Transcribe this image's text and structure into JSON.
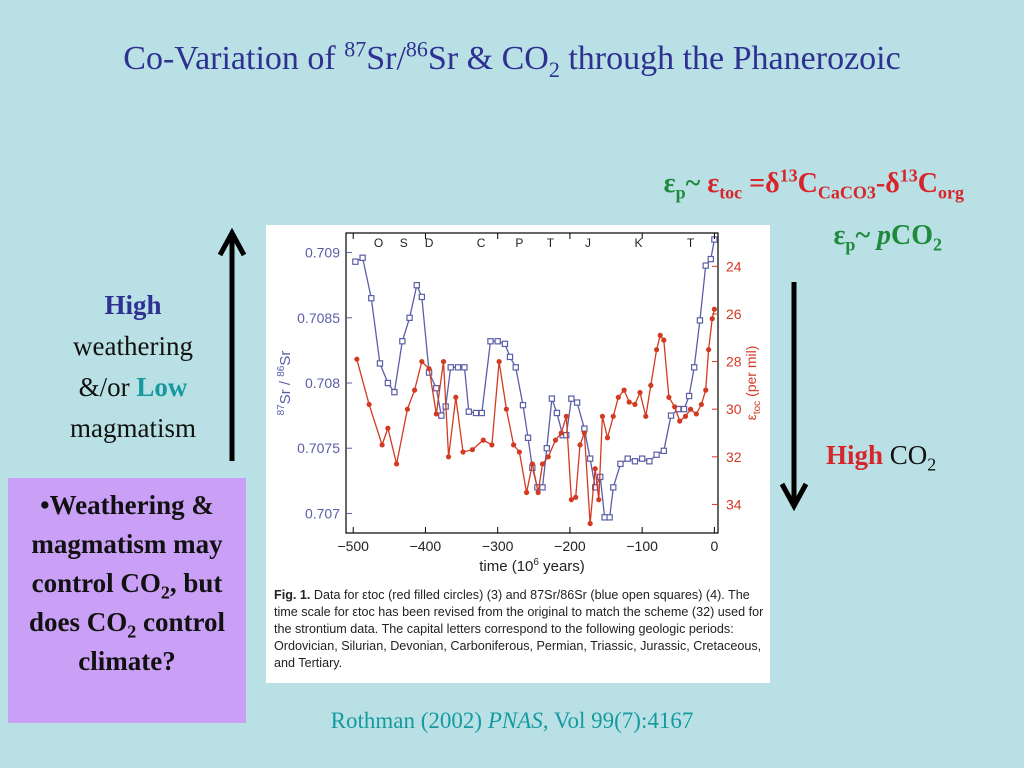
{
  "slide": {
    "title_parts": [
      "Co-Variation of ",
      "87",
      "Sr/",
      "86",
      "Sr & CO",
      "2",
      " through the Phanerozoic"
    ],
    "eq1_parts": [
      "ε",
      "p",
      "~ ",
      "ε",
      "toc",
      " =δ",
      "13",
      "C",
      "CaCO3",
      "-δ",
      "13",
      "C",
      "org"
    ],
    "eq2_parts": [
      "ε",
      "p",
      "~ ",
      "p",
      "CO",
      "2"
    ],
    "left_text": {
      "high": "High",
      "weathering": "weathering",
      "andor": "&/or ",
      "low": "Low",
      "magmatism": "magmatism"
    },
    "high_co2": {
      "high": "High",
      "co": " CO",
      "sub": "2"
    },
    "question_parts": [
      "•Weathering & magmatism may control CO",
      "2",
      ", but does CO",
      "2",
      " control climate?"
    ],
    "citation": {
      "authors": "Rothman (2002) ",
      "journal": "PNAS",
      "rest": ", Vol 99(7):4167"
    }
  },
  "colors": {
    "background": "#b9e0e4",
    "title": "#2e3191",
    "green": "#1f8a3c",
    "red": "#d7262b",
    "teal": "#169a9f",
    "question_box": "#c9a0f6",
    "sr_series": "#5b5ea6",
    "toc_series": "#d23a22"
  },
  "caption": {
    "fig_label": "Fig. 1.",
    "text": "Data for εtoc (red filled circles) (3) and 87Sr/86Sr (blue open squares) (4). The time scale for εtoc has been revised from the original to match the scheme (32) used for the strontium data. The capital letters correspond to the following geologic periods: Ordovician, Silurian, Devonian, Carboniferous, Permian, Triassic, Jurassic, Cretaceous, and Tertiary."
  },
  "chart_data": {
    "type": "line",
    "xlabel": "time (10^6 years)",
    "xlim": [
      -510,
      5
    ],
    "x_ticks": [
      -500,
      -400,
      -300,
      -200,
      -100,
      0
    ],
    "y_left_label": "87Sr / 86Sr",
    "y_left_lim": [
      0.70685,
      0.70915
    ],
    "y_left_ticks": [
      0.707,
      0.7075,
      0.708,
      0.7085,
      0.709
    ],
    "y_right_label": "εtoc (per mil)",
    "y_right_lim": [
      35.2,
      22.6
    ],
    "y_right_ticks": [
      24,
      26,
      28,
      30,
      32,
      34
    ],
    "periods": [
      {
        "label": "O",
        "x": -465
      },
      {
        "label": "S",
        "x": -430
      },
      {
        "label": "D",
        "x": -395
      },
      {
        "label": "C",
        "x": -323
      },
      {
        "label": "P",
        "x": -270
      },
      {
        "label": "T",
        "x": -227
      },
      {
        "label": "J",
        "x": -175
      },
      {
        "label": "K",
        "x": -105
      },
      {
        "label": "T",
        "x": -33
      }
    ],
    "series": [
      {
        "name": "87Sr/86Sr",
        "axis": "left",
        "marker": "open-square",
        "points": [
          [
            -497,
            0.70893
          ],
          [
            -487,
            0.70896
          ],
          [
            -475,
            0.70865
          ],
          [
            -463,
            0.70815
          ],
          [
            -452,
            0.708
          ],
          [
            -443,
            0.70793
          ],
          [
            -432,
            0.70832
          ],
          [
            -422,
            0.7085
          ],
          [
            -412,
            0.70875
          ],
          [
            -405,
            0.70866
          ],
          [
            -395,
            0.70808
          ],
          [
            -385,
            0.70796
          ],
          [
            -378,
            0.70775
          ],
          [
            -372,
            0.70782
          ],
          [
            -365,
            0.70812
          ],
          [
            -355,
            0.70812
          ],
          [
            -346,
            0.70812
          ],
          [
            -340,
            0.70778
          ],
          [
            -330,
            0.70777
          ],
          [
            -322,
            0.70777
          ],
          [
            -310,
            0.70832
          ],
          [
            -300,
            0.70832
          ],
          [
            -290,
            0.7083
          ],
          [
            -283,
            0.7082
          ],
          [
            -275,
            0.70812
          ],
          [
            -265,
            0.70783
          ],
          [
            -258,
            0.70758
          ],
          [
            -252,
            0.70735
          ],
          [
            -245,
            0.7072
          ],
          [
            -238,
            0.7072
          ],
          [
            -232,
            0.7075
          ],
          [
            -225,
            0.70788
          ],
          [
            -218,
            0.70777
          ],
          [
            -210,
            0.7076
          ],
          [
            -205,
            0.7076
          ],
          [
            -198,
            0.70788
          ],
          [
            -190,
            0.70785
          ],
          [
            -180,
            0.70765
          ],
          [
            -172,
            0.70742
          ],
          [
            -165,
            0.7072
          ],
          [
            -158,
            0.70728
          ],
          [
            -152,
            0.70697
          ],
          [
            -145,
            0.70697
          ],
          [
            -140,
            0.7072
          ],
          [
            -130,
            0.70738
          ],
          [
            -120,
            0.70742
          ],
          [
            -110,
            0.7074
          ],
          [
            -100,
            0.70742
          ],
          [
            -90,
            0.7074
          ],
          [
            -80,
            0.70745
          ],
          [
            -70,
            0.70748
          ],
          [
            -60,
            0.70775
          ],
          [
            -50,
            0.7078
          ],
          [
            -42,
            0.7078
          ],
          [
            -35,
            0.7079
          ],
          [
            -28,
            0.70812
          ],
          [
            -20,
            0.70848
          ],
          [
            -12,
            0.7089
          ],
          [
            -5,
            0.70895
          ],
          [
            0,
            0.7091
          ]
        ]
      },
      {
        "name": "εtoc",
        "axis": "right",
        "marker": "filled-circle",
        "points": [
          [
            -495,
            27.9
          ],
          [
            -478,
            29.8
          ],
          [
            -460,
            31.5
          ],
          [
            -452,
            30.8
          ],
          [
            -440,
            32.3
          ],
          [
            -425,
            30.0
          ],
          [
            -415,
            29.2
          ],
          [
            -405,
            28.0
          ],
          [
            -395,
            28.3
          ],
          [
            -385,
            30.2
          ],
          [
            -375,
            28.0
          ],
          [
            -368,
            32.0
          ],
          [
            -358,
            29.5
          ],
          [
            -348,
            31.8
          ],
          [
            -335,
            31.7
          ],
          [
            -320,
            31.3
          ],
          [
            -308,
            31.5
          ],
          [
            -298,
            28.0
          ],
          [
            -288,
            30.0
          ],
          [
            -278,
            31.5
          ],
          [
            -270,
            31.8
          ],
          [
            -260,
            33.5
          ],
          [
            -252,
            32.3
          ],
          [
            -244,
            33.5
          ],
          [
            -238,
            32.3
          ],
          [
            -230,
            32.0
          ],
          [
            -220,
            31.3
          ],
          [
            -212,
            31.0
          ],
          [
            -205,
            30.3
          ],
          [
            -198,
            33.8
          ],
          [
            -192,
            33.7
          ],
          [
            -186,
            31.5
          ],
          [
            -180,
            31.0
          ],
          [
            -172,
            34.8
          ],
          [
            -165,
            32.5
          ],
          [
            -160,
            33.8
          ],
          [
            -155,
            30.3
          ],
          [
            -148,
            31.2
          ],
          [
            -140,
            30.3
          ],
          [
            -133,
            29.5
          ],
          [
            -125,
            29.2
          ],
          [
            -118,
            29.7
          ],
          [
            -110,
            29.8
          ],
          [
            -103,
            29.3
          ],
          [
            -95,
            30.3
          ],
          [
            -88,
            29.0
          ],
          [
            -80,
            27.5
          ],
          [
            -75,
            26.9
          ],
          [
            -70,
            27.1
          ],
          [
            -63,
            29.5
          ],
          [
            -55,
            29.9
          ],
          [
            -48,
            30.5
          ],
          [
            -40,
            30.3
          ],
          [
            -33,
            30.0
          ],
          [
            -25,
            30.2
          ],
          [
            -18,
            29.8
          ],
          [
            -12,
            29.2
          ],
          [
            -8,
            27.5
          ],
          [
            -3,
            26.2
          ],
          [
            0,
            25.8
          ]
        ]
      }
    ]
  }
}
